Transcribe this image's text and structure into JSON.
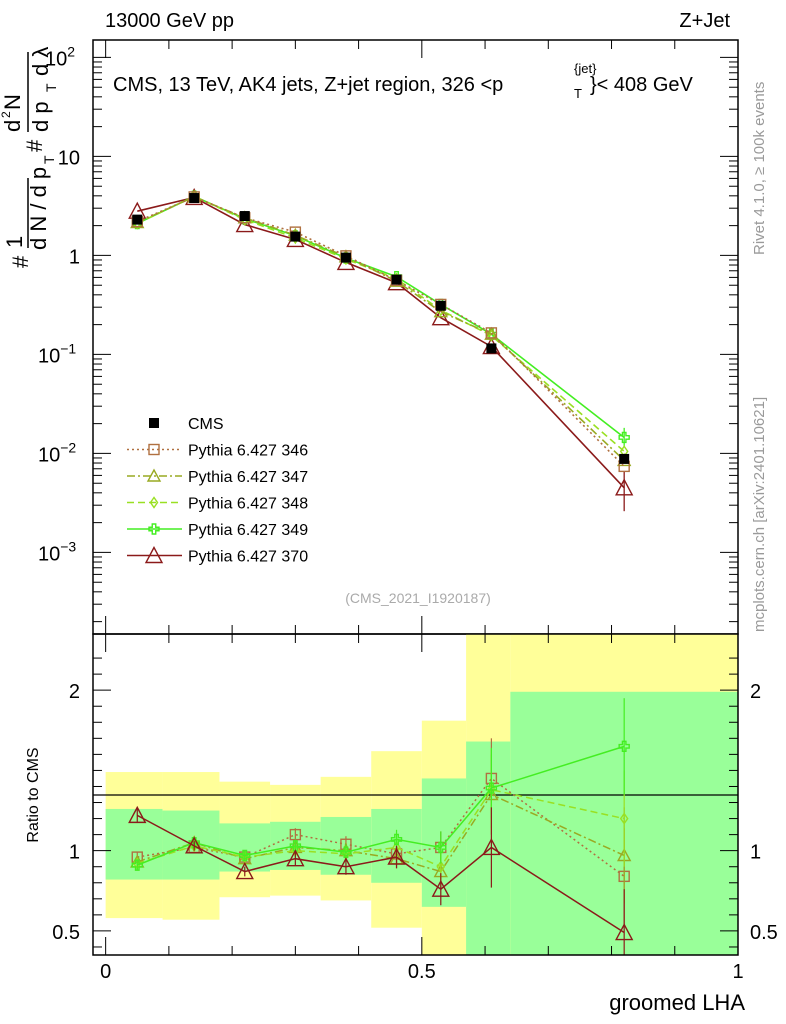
{
  "header": {
    "left": "13000 GeV pp",
    "right": "Z+Jet"
  },
  "side_labels": {
    "rivet": "Rivet 4.1.0, ≥ 100k events",
    "mcplots": "mcplots.cern.ch [arXiv:2401.10621]"
  },
  "chart_data": [
    {
      "type": "scatter",
      "title_parts": {
        "before": "CMS, 13 TeV, AK4 jets, Z+jet region, 326 <p",
        "sup": "{jet}",
        "sub": "T",
        "after": "}< 408 GeV"
      },
      "analysis_label": "(CMS_2021_I1920187)",
      "ylabel": "1/dN/dpT # d²N/dpT dλ",
      "yscale": "log",
      "ylim": [
        0.00015,
        150
      ],
      "xlim": [
        -0.02,
        1.0
      ],
      "y_ticks": [
        {
          "v": 0.001,
          "base": "10",
          "exp": "−3"
        },
        {
          "v": 0.01,
          "base": "10",
          "exp": "−2"
        },
        {
          "v": 0.1,
          "base": "10",
          "exp": "−1"
        },
        {
          "v": 1,
          "base": "1",
          "exp": ""
        },
        {
          "v": 10,
          "base": "10",
          "exp": ""
        },
        {
          "v": 100,
          "base": "10",
          "exp": "2"
        }
      ],
      "x": [
        0.05,
        0.14,
        0.22,
        0.3,
        0.38,
        0.46,
        0.53,
        0.61,
        0.82
      ],
      "series": [
        {
          "name": "CMS",
          "color": "#000000",
          "dash": "",
          "marker": "filled-square",
          "values": [
            2.3,
            3.8,
            2.5,
            1.55,
            0.95,
            0.57,
            0.31,
            0.115,
            0.0088
          ]
        },
        {
          "name": "Pythia 6.427 346",
          "color": "#b07040",
          "dash": "2,3",
          "marker": "open-square",
          "values": [
            2.2,
            3.9,
            2.4,
            1.72,
            0.99,
            0.56,
            0.32,
            0.165,
            0.0074
          ]
        },
        {
          "name": "Pythia 6.427 347",
          "color": "#99aa22",
          "dash": "8,3,2,3",
          "marker": "open-triangle",
          "values": [
            2.15,
            3.9,
            2.4,
            1.6,
            0.97,
            0.55,
            0.27,
            0.16,
            0.0085
          ]
        },
        {
          "name": "Pythia 6.427 348",
          "color": "#99e022",
          "dash": "7,4",
          "marker": "open-diamond",
          "values": [
            2.1,
            3.95,
            2.3,
            1.5,
            0.92,
            0.58,
            0.28,
            0.155,
            0.0105
          ]
        },
        {
          "name": "Pythia 6.427 349",
          "color": "#44ee22",
          "dash": "",
          "marker": "open-cross",
          "values": [
            2.1,
            3.95,
            2.35,
            1.58,
            0.94,
            0.61,
            0.32,
            0.16,
            0.0145
          ]
        },
        {
          "name": "Pythia 6.427 370",
          "color": "#8b1a1a",
          "dash": "",
          "marker": "open-triangle",
          "values": [
            2.8,
            3.85,
            2.05,
            1.45,
            0.85,
            0.53,
            0.235,
            0.12,
            0.0045
          ]
        }
      ]
    },
    {
      "type": "scatter",
      "ylabel": "Ratio to CMS",
      "xlabel": "groomed LHA",
      "ylim": [
        0.35,
        2.35
      ],
      "xlim": [
        -0.02,
        1.0
      ],
      "y_ticks": [
        0.5,
        1,
        2
      ],
      "x_ticks": [
        0,
        0.5,
        1
      ],
      "x_tick_labels": [
        "0",
        "0.5",
        "1"
      ],
      "bins": [
        {
          "lo": 0.0,
          "hi": 0.09,
          "band_inner": [
            0.82,
            1.26
          ],
          "band_outer": [
            0.58,
            1.49
          ]
        },
        {
          "lo": 0.09,
          "hi": 0.18,
          "band_inner": [
            0.82,
            1.25
          ],
          "band_outer": [
            0.57,
            1.49
          ]
        },
        {
          "lo": 0.18,
          "hi": 0.26,
          "band_inner": [
            0.87,
            1.17
          ],
          "band_outer": [
            0.71,
            1.43
          ]
        },
        {
          "lo": 0.26,
          "hi": 0.34,
          "band_inner": [
            0.88,
            1.18
          ],
          "band_outer": [
            0.72,
            1.41
          ]
        },
        {
          "lo": 0.34,
          "hi": 0.42,
          "band_inner": [
            0.85,
            1.21
          ],
          "band_outer": [
            0.69,
            1.46
          ]
        },
        {
          "lo": 0.42,
          "hi": 0.5,
          "band_inner": [
            0.8,
            1.26
          ],
          "band_outer": [
            0.52,
            1.62
          ]
        },
        {
          "lo": 0.5,
          "hi": 0.57,
          "band_inner": [
            0.65,
            1.45
          ],
          "band_outer": [
            0.35,
            1.81
          ]
        },
        {
          "lo": 0.57,
          "hi": 0.64,
          "band_inner": [
            0.35,
            1.68
          ],
          "band_outer": [
            0.35,
            2.35
          ]
        },
        {
          "lo": 0.64,
          "hi": 1.0,
          "band_inner": [
            0.35,
            1.99
          ],
          "band_outer": [
            0.35,
            2.35
          ]
        }
      ],
      "series": [
        {
          "name": "Pythia 6.427 346",
          "values": [
            0.96,
            1.02,
            0.96,
            1.1,
            1.04,
            0.98,
            1.02,
            1.45,
            0.84
          ],
          "errors": [
            0.03,
            0.03,
            0.03,
            0.04,
            0.05,
            0.06,
            0.1,
            0.25,
            0.3
          ]
        },
        {
          "name": "Pythia 6.427 347",
          "values": [
            0.93,
            1.05,
            0.95,
            1.02,
            1.0,
            0.95,
            0.87,
            1.35,
            0.97
          ],
          "errors": [
            0.03,
            0.03,
            0.03,
            0.04,
            0.05,
            0.06,
            0.1,
            0.25,
            0.3
          ]
        },
        {
          "name": "Pythia 6.427 348",
          "values": [
            0.92,
            1.03,
            0.96,
            1.0,
            0.98,
            1.02,
            0.9,
            1.38,
            1.2
          ],
          "errors": [
            0.03,
            0.03,
            0.03,
            0.04,
            0.05,
            0.06,
            0.1,
            0.25,
            0.3
          ]
        },
        {
          "name": "Pythia 6.427 349",
          "values": [
            0.91,
            1.05,
            0.97,
            1.03,
            0.99,
            1.07,
            1.02,
            1.39,
            1.65
          ],
          "errors": [
            0.03,
            0.03,
            0.03,
            0.04,
            0.05,
            0.06,
            0.1,
            0.25,
            0.3
          ]
        },
        {
          "name": "Pythia 6.427 370",
          "values": [
            1.22,
            1.03,
            0.87,
            0.95,
            0.9,
            0.96,
            0.76,
            1.02,
            0.49
          ],
          "errors": [
            0.04,
            0.03,
            0.03,
            0.04,
            0.05,
            0.07,
            0.1,
            0.25,
            0.27
          ]
        }
      ]
    }
  ]
}
